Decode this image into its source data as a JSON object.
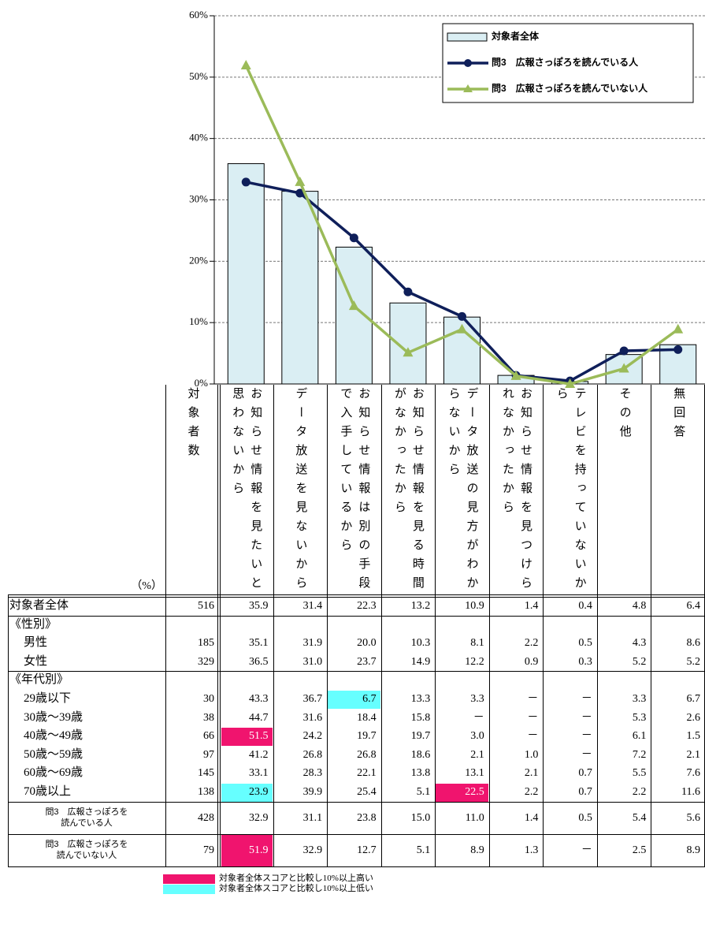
{
  "chart_data": {
    "type": "bar",
    "categories": [
      "お知らせ情報を見たいと思わないから",
      "データ放送を見ないから",
      "お知らせ情報は別の手段で入手しているから",
      "お知らせ情報を見る時間がなかったから",
      "データ放送の見方がわからないから",
      "お知らせ情報を見つけられなかったから",
      "テレビを持っていないから",
      "その他",
      "無回答"
    ],
    "series": [
      {
        "name": "対象者全体",
        "type": "bar",
        "color": "#daeef3",
        "values": [
          35.9,
          31.4,
          22.3,
          13.2,
          10.9,
          1.4,
          0.4,
          4.8,
          6.4
        ]
      },
      {
        "name": "問3　広報さっぽろを読んでいる人",
        "type": "line",
        "marker": "circle",
        "color": "#0f1f5a",
        "values": [
          32.9,
          31.1,
          23.8,
          15.0,
          11.0,
          1.4,
          0.5,
          5.4,
          5.6
        ]
      },
      {
        "name": "問3　広報さっぽろを読んでいない人",
        "type": "line",
        "marker": "triangle",
        "color": "#9bbb59",
        "values": [
          51.9,
          32.9,
          12.7,
          5.1,
          8.9,
          1.3,
          0,
          2.5,
          8.9
        ]
      }
    ],
    "ylim": [
      0,
      60
    ],
    "yticks": [
      {
        "value": 0,
        "label": "0%"
      },
      {
        "value": 10,
        "label": "10%"
      },
      {
        "value": 20,
        "label": "20%"
      },
      {
        "value": 30,
        "label": "30%"
      },
      {
        "value": 40,
        "label": "40%"
      },
      {
        "value": 50,
        "label": "50%"
      },
      {
        "value": 60,
        "label": "60%"
      }
    ],
    "grid": true,
    "legend": "top-right"
  },
  "table": {
    "unit": "（%）",
    "n_header": "対象者数",
    "rows": [
      {
        "label": "対象者全体",
        "n": "516",
        "values": [
          "35.9",
          "31.4",
          "22.3",
          "13.2",
          "10.9",
          "1.4",
          "0.4",
          "4.8",
          "6.4"
        ]
      },
      {
        "label": "《性別》",
        "rows": [
          {
            "label": "男性",
            "n": "185",
            "values": [
              "35.1",
              "31.9",
              "20.0",
              "10.3",
              "8.1",
              "2.2",
              "0.5",
              "4.3",
              "8.6"
            ]
          },
          {
            "label": "女性",
            "n": "329",
            "values": [
              "36.5",
              "31.0",
              "23.7",
              "14.9",
              "12.2",
              "0.9",
              "0.3",
              "5.2",
              "5.2"
            ]
          }
        ]
      },
      {
        "label": "《年代別》",
        "rows": [
          {
            "label": "29歳以下",
            "n": "30",
            "values": [
              "43.3",
              "36.7",
              "6.7",
              "13.3",
              "3.3",
              "－",
              "－",
              "3.3",
              "6.7"
            ],
            "highlight": [
              {
                "col": 2,
                "legend": 1
              }
            ]
          },
          {
            "label": "30歳～39歳",
            "n": "38",
            "values": [
              "44.7",
              "31.6",
              "18.4",
              "15.8",
              "－",
              "－",
              "－",
              "5.3",
              "2.6"
            ]
          },
          {
            "label": "40歳～49歳",
            "n": "66",
            "values": [
              "51.5",
              "24.2",
              "19.7",
              "19.7",
              "3.0",
              "－",
              "－",
              "6.1",
              "1.5"
            ],
            "highlight": [
              {
                "col": 0,
                "legend": 0
              }
            ]
          },
          {
            "label": "50歳～59歳",
            "n": "97",
            "values": [
              "41.2",
              "26.8",
              "26.8",
              "18.6",
              "2.1",
              "1.0",
              "－",
              "7.2",
              "2.1"
            ]
          },
          {
            "label": "60歳～69歳",
            "n": "145",
            "values": [
              "33.1",
              "28.3",
              "22.1",
              "13.8",
              "13.1",
              "2.1",
              "0.7",
              "5.5",
              "7.6"
            ]
          },
          {
            "label": "70歳以上",
            "n": "138",
            "values": [
              "23.9",
              "39.9",
              "25.4",
              "5.1",
              "22.5",
              "2.2",
              "0.7",
              "2.2",
              "11.6"
            ],
            "highlight": [
              {
                "col": 0,
                "legend": 1
              },
              {
                "col": 4,
                "legend": 0
              }
            ]
          }
        ]
      },
      {
        "label": [
          "問3　広報さっぽろを",
          "読んでいる人"
        ],
        "n": "428",
        "values": [
          "32.9",
          "31.1",
          "23.8",
          "15.0",
          "11.0",
          "1.4",
          "0.5",
          "5.4",
          "5.6"
        ]
      },
      {
        "label": [
          "問3　広報さっぽろを",
          "読んでいない人"
        ],
        "n": "79",
        "values": [
          "51.9",
          "32.9",
          "12.7",
          "5.1",
          "8.9",
          "1.3",
          "－",
          "2.5",
          "8.9"
        ],
        "highlight": [
          {
            "col": 0,
            "legend": 0
          }
        ]
      }
    ],
    "legend": [
      {
        "color": "#f0146e",
        "text": "#ffffff",
        "label": "対象者全体スコアと比較し10%以上高い"
      },
      {
        "color": "#66ffff",
        "text": "#000000",
        "label": "対象者全体スコアと比較し10%以上低い"
      }
    ]
  }
}
